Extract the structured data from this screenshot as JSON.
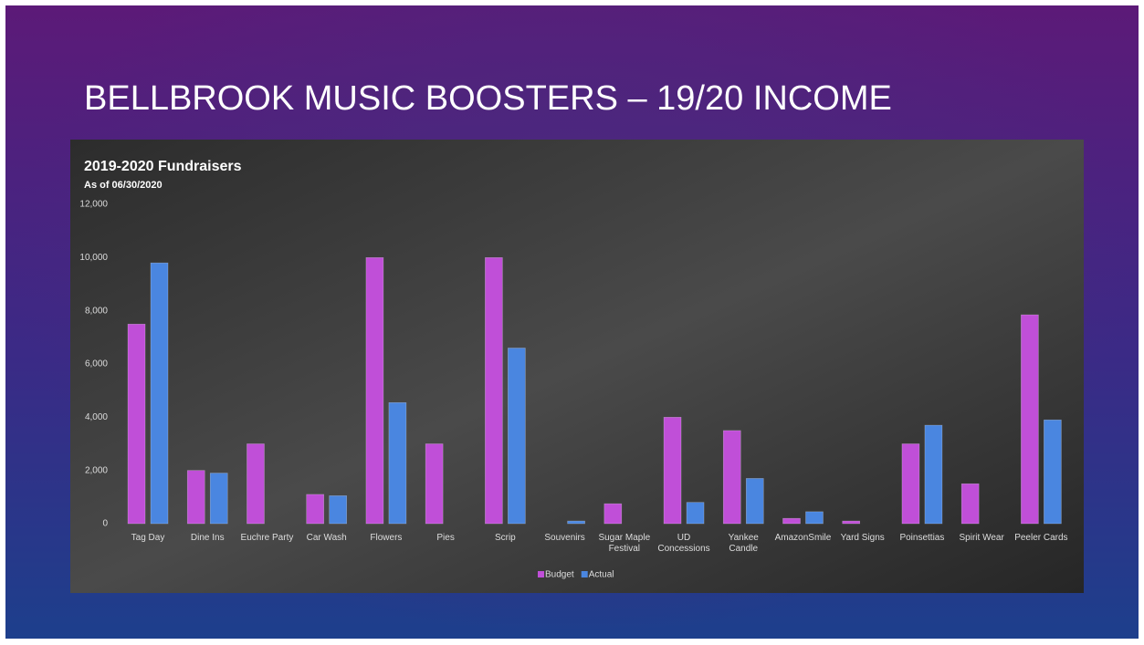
{
  "slide_title": "BELLBROOK MUSIC BOOSTERS – 19/20 INCOME",
  "chart_data": {
    "type": "bar",
    "title": "2019-2020 Fundraisers",
    "subtitle": "As of 06/30/2020",
    "categories": [
      "Tag Day",
      "Dine Ins",
      "Euchre Party",
      "Car Wash",
      "Flowers",
      "Pies",
      "Scrip",
      "Souvenirs",
      "Sugar Maple Festival",
      "UD Concessions",
      "Yankee Candle",
      "AmazonSmile",
      "Yard Signs",
      "Poinsettias",
      "Spirit Wear",
      "Peeler Cards"
    ],
    "series": [
      {
        "name": "Budget",
        "color": "#c04fd8",
        "values": [
          7500,
          2000,
          3000,
          1100,
          10000,
          3000,
          10000,
          0,
          750,
          4000,
          3500,
          200,
          100,
          3000,
          1500,
          7850
        ]
      },
      {
        "name": "Actual",
        "color": "#4a86e0",
        "values": [
          9800,
          1900,
          0,
          1050,
          4550,
          0,
          6600,
          100,
          0,
          800,
          1700,
          450,
          0,
          3700,
          0,
          3900
        ]
      }
    ],
    "ylim": [
      0,
      12000
    ],
    "yticks": [
      0,
      {
        "value": 2000,
        "label": "2,000"
      },
      {
        "value": 4000,
        "label": "4,000"
      },
      {
        "value": 6000,
        "label": "6,000"
      },
      {
        "value": 8000,
        "label": "8,000"
      },
      {
        "value": 10000,
        "label": "10,000"
      },
      {
        "value": 12000,
        "label": "12,000"
      }
    ],
    "grid": false,
    "legend": "bottom"
  }
}
